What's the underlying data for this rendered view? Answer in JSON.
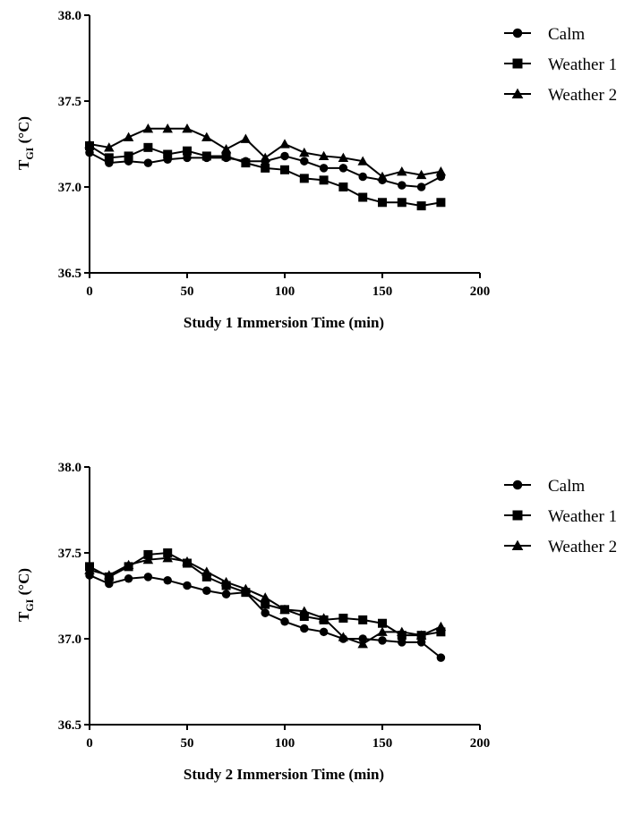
{
  "chart_data": [
    {
      "type": "line",
      "xlabel": "Study 1 Immersion Time (min)",
      "ylabel": "T",
      "ylabel_subscript": "GI",
      "ylabel_unit": " (°C)",
      "xlim": [
        0,
        200
      ],
      "ylim": [
        36.5,
        38.0
      ],
      "xticks": [
        0,
        50,
        100,
        150,
        200
      ],
      "yticks": [
        "36.5",
        "37.0",
        "37.5",
        "38.0"
      ],
      "grid": false,
      "legend": "top-right",
      "x": [
        0,
        10,
        20,
        30,
        40,
        50,
        60,
        70,
        80,
        90,
        100,
        110,
        120,
        130,
        140,
        150,
        160,
        170,
        180
      ],
      "series": [
        {
          "name": "Calm",
          "marker": "circle",
          "values": [
            37.2,
            37.14,
            37.15,
            37.14,
            37.16,
            37.17,
            37.17,
            37.17,
            37.15,
            37.15,
            37.18,
            37.15,
            37.11,
            37.11,
            37.06,
            37.04,
            37.01,
            37.0,
            37.06
          ]
        },
        {
          "name": "Weather 1",
          "marker": "square",
          "values": [
            37.24,
            37.17,
            37.18,
            37.23,
            37.19,
            37.21,
            37.18,
            37.18,
            37.14,
            37.11,
            37.1,
            37.05,
            37.04,
            37.0,
            36.94,
            36.91,
            36.91,
            36.89,
            36.91
          ]
        },
        {
          "name": "Weather 2",
          "marker": "triangle",
          "values": [
            37.25,
            37.23,
            37.29,
            37.34,
            37.34,
            37.34,
            37.29,
            37.22,
            37.28,
            37.17,
            37.25,
            37.2,
            37.18,
            37.17,
            37.15,
            37.06,
            37.09,
            37.07,
            37.09
          ]
        }
      ]
    },
    {
      "type": "line",
      "xlabel": "Study 2 Immersion Time (min)",
      "ylabel": "T",
      "ylabel_subscript": "GI",
      "ylabel_unit": " (°C)",
      "xlim": [
        0,
        200
      ],
      "ylim": [
        36.5,
        38.0
      ],
      "xticks": [
        0,
        50,
        100,
        150,
        200
      ],
      "yticks": [
        "36.5",
        "37.0",
        "37.5",
        "38.0"
      ],
      "grid": false,
      "legend": "top-right",
      "x": [
        0,
        10,
        20,
        30,
        40,
        50,
        60,
        70,
        80,
        90,
        100,
        110,
        120,
        130,
        140,
        150,
        160,
        170,
        180
      ],
      "series": [
        {
          "name": "Calm",
          "marker": "circle",
          "values": [
            37.37,
            37.32,
            37.35,
            37.36,
            37.34,
            37.31,
            37.28,
            37.26,
            37.27,
            37.15,
            37.1,
            37.06,
            37.04,
            37.0,
            37.0,
            36.99,
            36.98,
            36.98,
            36.89
          ]
        },
        {
          "name": "Weather 1",
          "marker": "square",
          "values": [
            37.42,
            37.36,
            37.42,
            37.49,
            37.5,
            37.44,
            37.36,
            37.31,
            37.27,
            37.2,
            37.17,
            37.13,
            37.11,
            37.12,
            37.11,
            37.09,
            37.02,
            37.02,
            37.04
          ]
        },
        {
          "name": "Weather 2",
          "marker": "triangle",
          "values": [
            37.4,
            37.37,
            37.43,
            37.46,
            37.47,
            37.45,
            37.39,
            37.33,
            37.29,
            37.24,
            37.17,
            37.16,
            37.12,
            37.01,
            36.97,
            37.04,
            37.04,
            37.02,
            37.07
          ]
        }
      ]
    }
  ]
}
